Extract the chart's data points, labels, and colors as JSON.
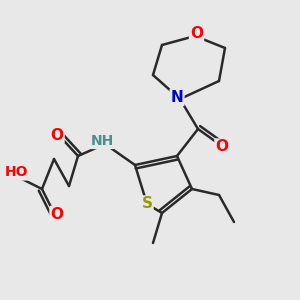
{
  "bg_color": "#e8e8e8",
  "bond_color": "#2a2a2a",
  "bond_width": 1.8,
  "atom_colors": {
    "O": "#ff0000",
    "N": "#0000cc",
    "S": "#999900",
    "H": "#4a9090",
    "C": "#2a2a2a"
  },
  "fs": 11,
  "fig_w": 3.0,
  "fig_h": 3.0,
  "dpi": 100
}
